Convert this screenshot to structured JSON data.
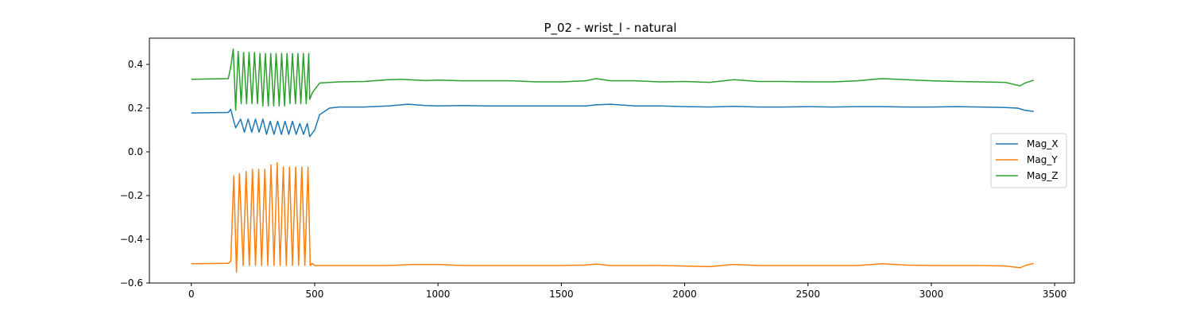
{
  "chart_data": {
    "type": "line",
    "title": "P_02 - wrist_l - natural",
    "xlabel": "",
    "ylabel": "",
    "xlim": [
      -170,
      3580
    ],
    "ylim": [
      -0.6,
      0.52
    ],
    "xticks": [
      0,
      500,
      1000,
      1500,
      2000,
      2500,
      3000,
      3500
    ],
    "yticks": [
      -0.6,
      -0.4,
      -0.2,
      0.0,
      0.2,
      0.4
    ],
    "ytick_labels": [
      "−0.6",
      "−0.4",
      "−0.2",
      "0.0",
      "0.2",
      "0.4"
    ],
    "grid": false,
    "legend_position": "center-right",
    "series": [
      {
        "name": "Mag_X",
        "color": "#1f77b4",
        "x": [
          0,
          150,
          160,
          170,
          180,
          200,
          215,
          230,
          245,
          260,
          275,
          290,
          305,
          320,
          335,
          350,
          365,
          380,
          395,
          410,
          425,
          440,
          455,
          470,
          480,
          500,
          520,
          560,
          600,
          700,
          800,
          880,
          950,
          1000,
          1100,
          1200,
          1300,
          1400,
          1500,
          1600,
          1640,
          1700,
          1800,
          1900,
          2000,
          2100,
          2200,
          2300,
          2400,
          2500,
          2600,
          2700,
          2800,
          2900,
          3000,
          3100,
          3200,
          3300,
          3350,
          3380,
          3415
        ],
        "y": [
          0.178,
          0.18,
          0.195,
          0.15,
          0.11,
          0.15,
          0.09,
          0.15,
          0.09,
          0.15,
          0.09,
          0.15,
          0.08,
          0.14,
          0.08,
          0.14,
          0.08,
          0.14,
          0.08,
          0.14,
          0.08,
          0.13,
          0.08,
          0.13,
          0.07,
          0.1,
          0.17,
          0.2,
          0.205,
          0.205,
          0.21,
          0.218,
          0.212,
          0.21,
          0.212,
          0.21,
          0.21,
          0.21,
          0.21,
          0.21,
          0.215,
          0.218,
          0.21,
          0.21,
          0.207,
          0.205,
          0.208,
          0.205,
          0.205,
          0.207,
          0.205,
          0.207,
          0.207,
          0.205,
          0.205,
          0.207,
          0.205,
          0.203,
          0.2,
          0.19,
          0.185
        ]
      },
      {
        "name": "Mag_Y",
        "color": "#ff7f0e",
        "x": [
          0,
          150,
          160,
          172,
          183,
          195,
          210,
          222,
          235,
          248,
          260,
          273,
          285,
          298,
          310,
          323,
          335,
          348,
          360,
          373,
          385,
          398,
          410,
          423,
          435,
          448,
          460,
          473,
          482,
          490,
          500,
          600,
          700,
          800,
          900,
          1000,
          1100,
          1200,
          1300,
          1400,
          1500,
          1600,
          1640,
          1700,
          1800,
          1900,
          2000,
          2100,
          2200,
          2300,
          2400,
          2500,
          2600,
          2700,
          2800,
          2900,
          3000,
          3100,
          3200,
          3300,
          3360,
          3380,
          3415
        ],
        "y": [
          -0.512,
          -0.51,
          -0.5,
          -0.11,
          -0.55,
          -0.1,
          -0.52,
          -0.09,
          -0.52,
          -0.08,
          -0.52,
          -0.08,
          -0.52,
          -0.08,
          -0.52,
          -0.06,
          -0.52,
          -0.05,
          -0.52,
          -0.07,
          -0.52,
          -0.07,
          -0.52,
          -0.07,
          -0.52,
          -0.07,
          -0.52,
          -0.07,
          -0.52,
          -0.51,
          -0.52,
          -0.52,
          -0.52,
          -0.52,
          -0.515,
          -0.515,
          -0.52,
          -0.52,
          -0.52,
          -0.52,
          -0.52,
          -0.518,
          -0.513,
          -0.52,
          -0.52,
          -0.52,
          -0.522,
          -0.525,
          -0.515,
          -0.52,
          -0.52,
          -0.52,
          -0.52,
          -0.52,
          -0.512,
          -0.518,
          -0.52,
          -0.52,
          -0.52,
          -0.522,
          -0.53,
          -0.52,
          -0.51
        ]
      },
      {
        "name": "Mag_Z",
        "color": "#2ca02c",
        "x": [
          0,
          150,
          160,
          170,
          180,
          190,
          202,
          212,
          224,
          234,
          246,
          256,
          268,
          278,
          290,
          300,
          312,
          322,
          334,
          344,
          356,
          366,
          378,
          388,
          400,
          410,
          422,
          432,
          444,
          454,
          466,
          476,
          480,
          490,
          520,
          600,
          700,
          800,
          850,
          950,
          1000,
          1100,
          1200,
          1300,
          1400,
          1500,
          1600,
          1640,
          1700,
          1800,
          1900,
          2000,
          2100,
          2200,
          2300,
          2400,
          2500,
          2600,
          2700,
          2800,
          2900,
          3000,
          3100,
          3200,
          3300,
          3360,
          3380,
          3415
        ],
        "y": [
          0.332,
          0.335,
          0.39,
          0.47,
          0.19,
          0.46,
          0.22,
          0.455,
          0.22,
          0.455,
          0.22,
          0.455,
          0.22,
          0.45,
          0.21,
          0.45,
          0.21,
          0.45,
          0.21,
          0.45,
          0.21,
          0.45,
          0.21,
          0.45,
          0.22,
          0.45,
          0.22,
          0.45,
          0.22,
          0.45,
          0.22,
          0.45,
          0.24,
          0.27,
          0.315,
          0.32,
          0.322,
          0.33,
          0.332,
          0.326,
          0.328,
          0.325,
          0.325,
          0.325,
          0.32,
          0.32,
          0.325,
          0.335,
          0.325,
          0.325,
          0.32,
          0.322,
          0.318,
          0.33,
          0.322,
          0.322,
          0.32,
          0.32,
          0.325,
          0.335,
          0.33,
          0.325,
          0.322,
          0.32,
          0.318,
          0.302,
          0.315,
          0.328
        ]
      }
    ]
  }
}
